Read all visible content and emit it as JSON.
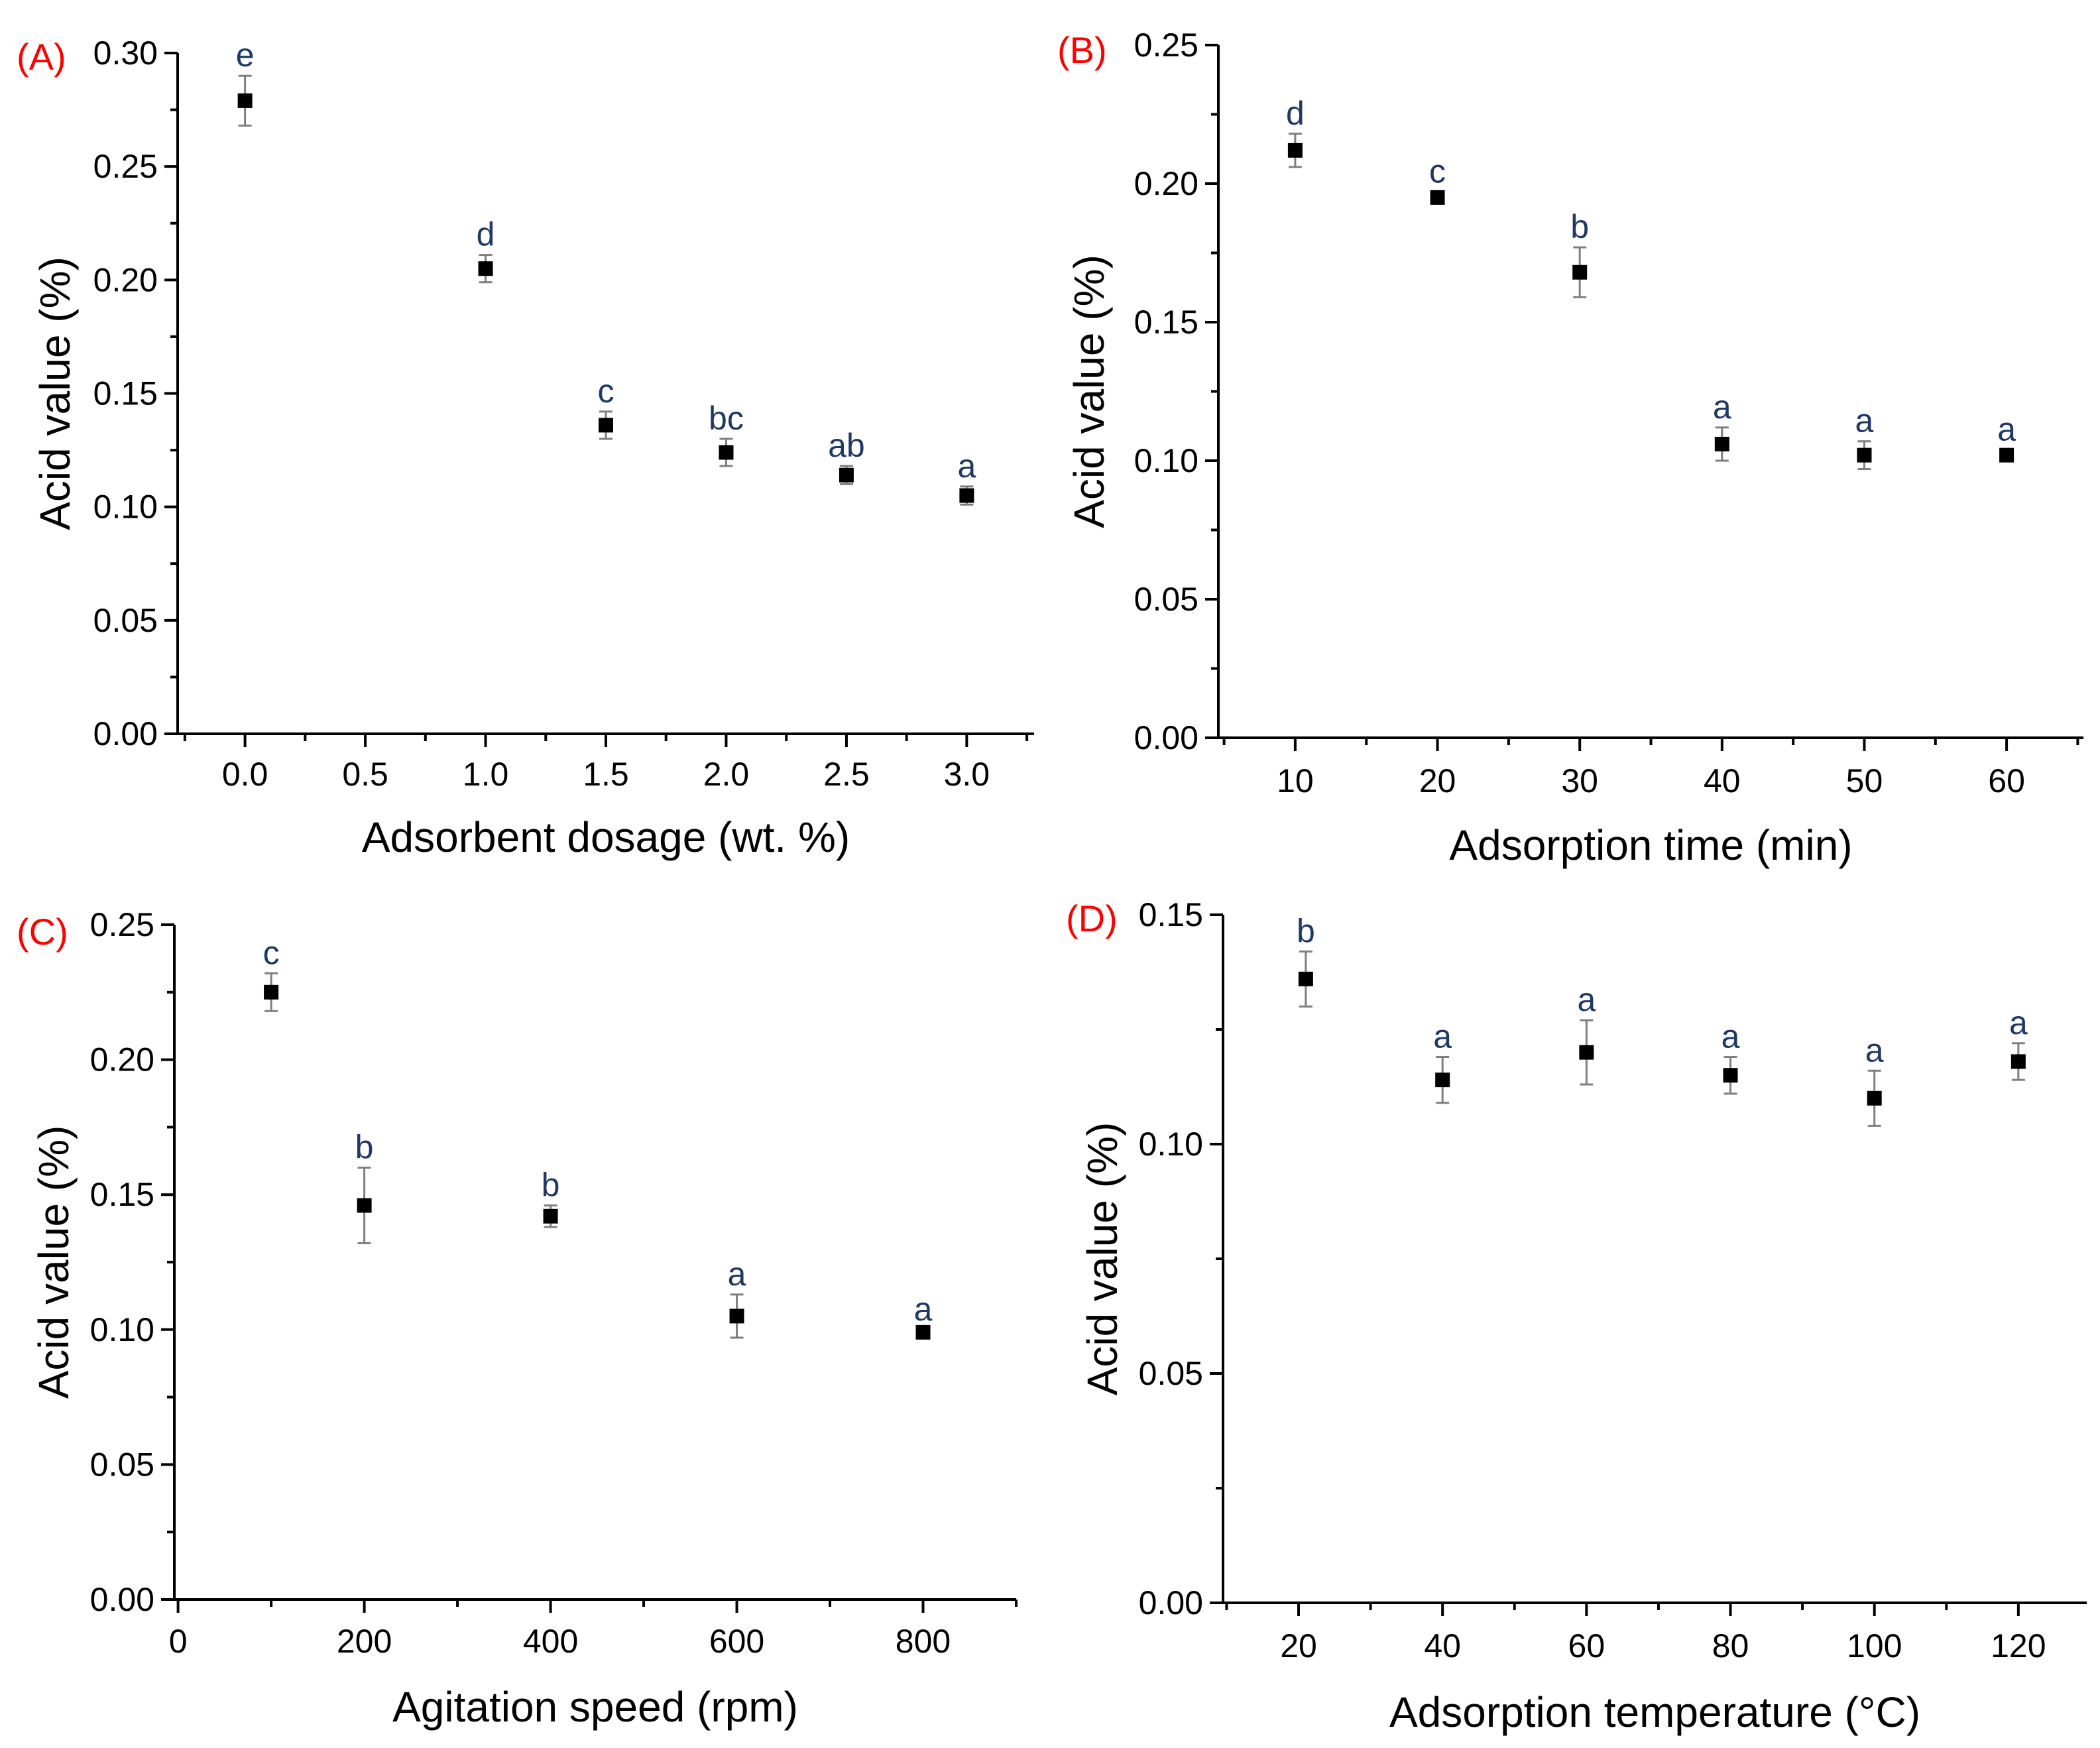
{
  "colors": {
    "panel_label": "#ff0000",
    "sig_label": "#1f3864",
    "marker": "#000000",
    "errorbar": "#7f7f7f",
    "axis": "#000000"
  },
  "chart_data": [
    {
      "type": "scatter",
      "panel": "(A)",
      "xlabel": "Adsorbent dosage (wt. %)",
      "ylabel": "Acid value (%)",
      "xlim": [
        -0.28,
        3.28
      ],
      "ylim": [
        0,
        0.3
      ],
      "xticks": [
        0.0,
        0.5,
        1.0,
        1.5,
        2.0,
        2.5,
        3.0
      ],
      "xtick_labels": [
        "0.0",
        "0.5",
        "1.0",
        "1.5",
        "2.0",
        "2.5",
        "3.0"
      ],
      "yticks": [
        0,
        0.05,
        0.1,
        0.15,
        0.2,
        0.25,
        0.3
      ],
      "ytick_labels": [
        "0.00",
        "0.05",
        "0.10",
        "0.15",
        "0.20",
        "0.25",
        "0.30"
      ],
      "x": [
        0.0,
        1.0,
        1.5,
        2.0,
        2.5,
        3.0
      ],
      "y": [
        0.279,
        0.205,
        0.136,
        0.124,
        0.114,
        0.105
      ],
      "err": [
        0.011,
        0.006,
        0.006,
        0.006,
        0.004,
        0.004
      ],
      "sig": [
        "e",
        "d",
        "c",
        "bc",
        "ab",
        "a"
      ]
    },
    {
      "type": "scatter",
      "panel": "(B)",
      "xlabel": "Adsorption time (min)",
      "ylabel": "Acid value (%)",
      "xlim": [
        4.6,
        65.4
      ],
      "ylim": [
        0,
        0.25
      ],
      "xticks": [
        10,
        20,
        30,
        40,
        50,
        60
      ],
      "xtick_labels": [
        "10",
        "20",
        "30",
        "40",
        "50",
        "60"
      ],
      "yticks": [
        0,
        0.05,
        0.1,
        0.15,
        0.2,
        0.25
      ],
      "ytick_labels": [
        "0.00",
        "0.05",
        "0.10",
        "0.15",
        "0.20",
        "0.25"
      ],
      "x": [
        10,
        20,
        30,
        40,
        50,
        60
      ],
      "y": [
        0.212,
        0.195,
        0.168,
        0.106,
        0.102,
        0.102
      ],
      "err": [
        0.006,
        0.002,
        0.009,
        0.006,
        0.005,
        0.002
      ],
      "sig": [
        "d",
        "c",
        "b",
        "a",
        "a",
        "a"
      ]
    },
    {
      "type": "scatter",
      "panel": "(C)",
      "xlabel": "Agitation speed (rpm)",
      "ylabel": "Acid value (%)",
      "xlim": [
        -4,
        900
      ],
      "ylim": [
        0,
        0.25
      ],
      "xticks": [
        0,
        200,
        400,
        600,
        800
      ],
      "xtick_labels": [
        "0",
        "200",
        "400",
        "600",
        "800"
      ],
      "yticks": [
        0,
        0.05,
        0.1,
        0.15,
        0.2,
        0.25
      ],
      "ytick_labels": [
        "0.00",
        "0.05",
        "0.10",
        "0.15",
        "0.20",
        "0.25"
      ],
      "x": [
        100,
        200,
        400,
        600,
        800
      ],
      "y": [
        0.225,
        0.146,
        0.142,
        0.105,
        0.099
      ],
      "err": [
        0.007,
        0.014,
        0.004,
        0.008,
        0.001
      ],
      "sig": [
        "c",
        "b",
        "b",
        "a",
        "a"
      ]
    },
    {
      "type": "scatter",
      "panel": "(D)",
      "xlabel": "Adsorption temperature (°C)",
      "ylabel": "Acid value (%)",
      "xlim": [
        9.5,
        129.5
      ],
      "ylim": [
        0,
        0.15
      ],
      "xticks": [
        20,
        40,
        60,
        80,
        100,
        120
      ],
      "xtick_labels": [
        "20",
        "40",
        "60",
        "80",
        "100",
        "120"
      ],
      "yticks": [
        0,
        0.05,
        0.1,
        0.15
      ],
      "ytick_labels": [
        "0.00",
        "0.05",
        "0.10",
        "0.15"
      ],
      "x": [
        21,
        40,
        60,
        80,
        100,
        120
      ],
      "y": [
        0.136,
        0.114,
        0.12,
        0.115,
        0.11,
        0.118
      ],
      "err": [
        0.006,
        0.005,
        0.007,
        0.004,
        0.006,
        0.004
      ],
      "sig": [
        "b",
        "a",
        "a",
        "a",
        "a",
        "a"
      ]
    }
  ]
}
